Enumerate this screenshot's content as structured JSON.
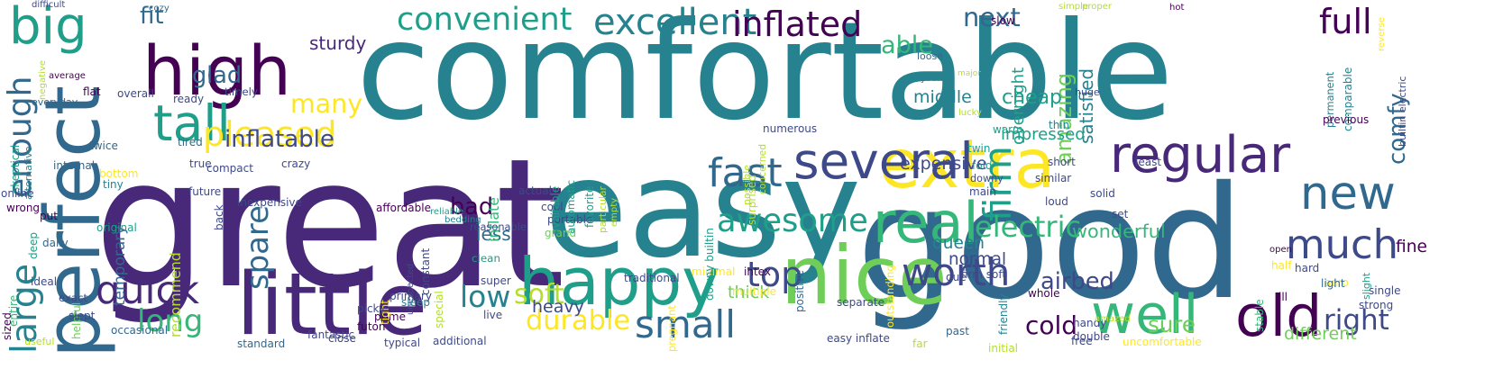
{
  "palette": {
    "c1": "#440154",
    "c2": "#482878",
    "c3": "#3e4989",
    "c4": "#31688e",
    "c5": "#26828e",
    "c6": "#1f9e89",
    "c7": "#35b779",
    "c8": "#6ece58",
    "c9": "#b5de2b",
    "c10": "#fde725"
  },
  "words": [
    {
      "text": "comfortable",
      "color": "c5"
    },
    {
      "text": "great",
      "color": "c2"
    },
    {
      "text": "easy",
      "color": "c5"
    },
    {
      "text": "good",
      "color": "c4"
    },
    {
      "text": "high",
      "color": "c1"
    },
    {
      "text": "little",
      "color": "c2"
    },
    {
      "text": "perfect",
      "color": "c4"
    },
    {
      "text": "nice",
      "color": "c8"
    },
    {
      "text": "happy",
      "color": "c6"
    },
    {
      "text": "extra",
      "color": "c10"
    },
    {
      "text": "regular",
      "color": "c2"
    },
    {
      "text": "several",
      "color": "c3"
    },
    {
      "text": "big",
      "color": "c6"
    },
    {
      "text": "tall",
      "color": "c6"
    },
    {
      "text": "real",
      "color": "c7"
    },
    {
      "text": "well",
      "color": "c7"
    },
    {
      "text": "much",
      "color": "c3"
    },
    {
      "text": "new",
      "color": "c4"
    },
    {
      "text": "old",
      "color": "c1"
    },
    {
      "text": "quick",
      "color": "c2"
    },
    {
      "text": "large",
      "color": "c5"
    },
    {
      "text": "firm",
      "color": "c6"
    },
    {
      "text": "awesome",
      "color": "c6"
    },
    {
      "text": "excellent",
      "color": "c5"
    },
    {
      "text": "convenient",
      "color": "c6"
    },
    {
      "text": "inflated",
      "color": "c1"
    },
    {
      "text": "full",
      "color": "c1"
    },
    {
      "text": "enough",
      "color": "c4"
    },
    {
      "text": "fast",
      "color": "c4"
    },
    {
      "text": "many",
      "color": "c10"
    },
    {
      "text": "worth",
      "color": "c3"
    },
    {
      "text": "top",
      "color": "c3"
    },
    {
      "text": "small",
      "color": "c4"
    },
    {
      "text": "electric",
      "color": "c7"
    },
    {
      "text": "spare",
      "color": "c4"
    },
    {
      "text": "durable",
      "color": "c10"
    },
    {
      "text": "long",
      "color": "c7"
    },
    {
      "text": "low",
      "color": "c5"
    },
    {
      "text": "soft",
      "color": "c9"
    },
    {
      "text": "sure",
      "color": "c8"
    },
    {
      "text": "right",
      "color": "c3"
    },
    {
      "text": "cold",
      "color": "c1"
    },
    {
      "text": "pleased",
      "color": "c10"
    },
    {
      "text": "next",
      "color": "c4"
    },
    {
      "text": "able",
      "color": "c7"
    },
    {
      "text": "fit",
      "color": "c4"
    },
    {
      "text": "glad",
      "color": "c4"
    },
    {
      "text": "inflatable",
      "color": "c3"
    },
    {
      "text": "bad",
      "color": "c1"
    },
    {
      "text": "airbed",
      "color": "c3"
    },
    {
      "text": "wonderful",
      "color": "c7"
    },
    {
      "text": "amazing",
      "color": "c8"
    },
    {
      "text": "comfy",
      "color": "c4"
    },
    {
      "text": "cheap",
      "color": "c6"
    },
    {
      "text": "sturdy",
      "color": "c2"
    },
    {
      "text": "satisfied",
      "color": "c5"
    },
    {
      "text": "overnight",
      "color": "c6"
    },
    {
      "text": "middle",
      "color": "c5"
    },
    {
      "text": "expensive",
      "color": "c3"
    },
    {
      "text": "impressed",
      "color": "c6"
    },
    {
      "text": "less",
      "color": "c4"
    },
    {
      "text": "inflate",
      "color": "c7"
    },
    {
      "text": "queen",
      "color": "c5"
    },
    {
      "text": "normal",
      "color": "c3"
    },
    {
      "text": "heavy",
      "color": "c3"
    },
    {
      "text": "thick",
      "color": "c8"
    },
    {
      "text": "temporary",
      "color": "c4"
    },
    {
      "text": "recommend",
      "color": "c9"
    },
    {
      "text": "fine",
      "color": "c1"
    },
    {
      "text": "different",
      "color": "c8"
    },
    {
      "text": "difficult",
      "color": "c3"
    },
    {
      "text": "cozy",
      "color": "c4"
    },
    {
      "text": "slow",
      "color": "c1"
    },
    {
      "text": "simple",
      "color": "c9"
    },
    {
      "text": "proper",
      "color": "c9"
    },
    {
      "text": "hot",
      "color": "c1"
    },
    {
      "text": "loose",
      "color": "c4"
    },
    {
      "text": "huge",
      "color": "c3"
    },
    {
      "text": "lucky",
      "color": "c9"
    },
    {
      "text": "young",
      "color": "c5"
    },
    {
      "text": "major",
      "color": "c9"
    },
    {
      "text": "negative",
      "color": "c9"
    },
    {
      "text": "average",
      "color": "c1"
    },
    {
      "text": "flat",
      "color": "c1"
    },
    {
      "text": "overall",
      "color": "c3"
    },
    {
      "text": "everyday",
      "color": "c4"
    },
    {
      "text": "timely",
      "color": "c3"
    },
    {
      "text": "ready",
      "color": "c3"
    },
    {
      "text": "tired",
      "color": "c4"
    },
    {
      "text": "twice",
      "color": "c4"
    },
    {
      "text": "true",
      "color": "c3"
    },
    {
      "text": "compact",
      "color": "c3"
    },
    {
      "text": "crazy",
      "color": "c3"
    },
    {
      "text": "warm",
      "color": "c6"
    },
    {
      "text": "twin",
      "color": "c6"
    },
    {
      "text": "fold",
      "color": "c6"
    },
    {
      "text": "downy",
      "color": "c3"
    },
    {
      "text": "thin",
      "color": "c5"
    },
    {
      "text": "main",
      "color": "c3"
    },
    {
      "text": "loud",
      "color": "c3"
    },
    {
      "text": "solid",
      "color": "c3"
    },
    {
      "text": "set",
      "color": "c3"
    },
    {
      "text": "least",
      "color": "c3"
    },
    {
      "text": "short",
      "color": "c3"
    },
    {
      "text": "similar",
      "color": "c3"
    },
    {
      "text": "permanent",
      "color": "c5"
    },
    {
      "text": "comparable",
      "color": "c5"
    },
    {
      "text": "reverse",
      "color": "c10"
    },
    {
      "text": "previous",
      "color": "c1"
    },
    {
      "text": "builtin electric",
      "color": "c3"
    },
    {
      "text": "skeptical",
      "color": "c6"
    },
    {
      "text": "alternative",
      "color": "c5"
    },
    {
      "text": "internal",
      "color": "c4"
    },
    {
      "text": "bottom",
      "color": "c10"
    },
    {
      "text": "tiny",
      "color": "c5"
    },
    {
      "text": "online",
      "color": "c3"
    },
    {
      "text": "wrong",
      "color": "c1"
    },
    {
      "text": "put",
      "color": "c1"
    },
    {
      "text": "original",
      "color": "c6"
    },
    {
      "text": "future",
      "color": "c3"
    },
    {
      "text": "back",
      "color": "c3"
    },
    {
      "text": "inexpensive",
      "color": "c3"
    },
    {
      "text": "affordable",
      "color": "c1"
    },
    {
      "text": "reliable",
      "color": "c6"
    },
    {
      "text": "bedding",
      "color": "c5"
    },
    {
      "text": "reasonable",
      "color": "c3"
    },
    {
      "text": "actual",
      "color": "c3"
    },
    {
      "text": "cool",
      "color": "c3"
    },
    {
      "text": "portable",
      "color": "c3"
    },
    {
      "text": "grand",
      "color": "c8"
    },
    {
      "text": "available",
      "color": "c6"
    },
    {
      "text": "automatic",
      "color": "c6"
    },
    {
      "text": "favorite",
      "color": "c6"
    },
    {
      "text": "particular",
      "color": "c9"
    },
    {
      "text": "empty",
      "color": "c9"
    },
    {
      "text": "open",
      "color": "c1"
    },
    {
      "text": "half",
      "color": "c10"
    },
    {
      "text": "hard",
      "color": "c3"
    },
    {
      "text": "slight",
      "color": "c6"
    },
    {
      "text": "deep",
      "color": "c6"
    },
    {
      "text": "daily",
      "color": "c4"
    },
    {
      "text": "entire",
      "color": "c7"
    },
    {
      "text": "ideal",
      "color": "c3"
    },
    {
      "text": "exact",
      "color": "c3"
    },
    {
      "text": "helpful",
      "color": "c8"
    },
    {
      "text": "sized",
      "color": "c1"
    },
    {
      "text": "slept",
      "color": "c3"
    },
    {
      "text": "useful",
      "color": "c9"
    },
    {
      "text": "occasional",
      "color": "c4"
    },
    {
      "text": "standard",
      "color": "c4"
    },
    {
      "text": "fantastic",
      "color": "c3"
    },
    {
      "text": "close",
      "color": "c3"
    },
    {
      "text": "additional",
      "color": "c3"
    },
    {
      "text": "easy inflate",
      "color": "c3"
    },
    {
      "text": "far",
      "color": "c9"
    },
    {
      "text": "past",
      "color": "c4"
    },
    {
      "text": "initial",
      "color": "c9"
    },
    {
      "text": "free",
      "color": "c3"
    },
    {
      "text": "uncomfortable",
      "color": "c10"
    },
    {
      "text": "unexpected",
      "color": "c3"
    },
    {
      "text": "constant",
      "color": "c3"
    },
    {
      "text": "clean",
      "color": "c6"
    },
    {
      "text": "super",
      "color": "c3"
    },
    {
      "text": "traditional",
      "color": "c3"
    },
    {
      "text": "primary",
      "color": "c3"
    },
    {
      "text": "prime",
      "color": "c1"
    },
    {
      "text": "special",
      "color": "c9"
    },
    {
      "text": "typical",
      "color": "c3"
    },
    {
      "text": "tight",
      "color": "c10"
    },
    {
      "text": "sleep",
      "color": "c5"
    },
    {
      "text": "picky",
      "color": "c3"
    },
    {
      "text": "futon",
      "color": "c1"
    },
    {
      "text": "live",
      "color": "c3"
    },
    {
      "text": "pregnant",
      "color": "c10"
    },
    {
      "text": "minimal",
      "color": "c10"
    },
    {
      "text": "multiple",
      "color": "c10"
    },
    {
      "text": "downy builtin",
      "color": "c6"
    },
    {
      "text": "intex",
      "color": "c1"
    },
    {
      "text": "positive",
      "color": "c4"
    },
    {
      "text": "due",
      "color": "c3"
    },
    {
      "text": "firm soft",
      "color": "c3"
    },
    {
      "text": "friendly",
      "color": "c5"
    },
    {
      "text": "separate",
      "color": "c3"
    },
    {
      "text": "outstanding",
      "color": "c10"
    },
    {
      "text": "whole",
      "color": "c1"
    },
    {
      "text": "stable",
      "color": "c7"
    },
    {
      "text": "aero",
      "color": "c10"
    },
    {
      "text": "single",
      "color": "c3"
    },
    {
      "text": "ill",
      "color": "c1"
    },
    {
      "text": "light",
      "color": "c4"
    },
    {
      "text": "strong",
      "color": "c3"
    },
    {
      "text": "handy",
      "color": "c3"
    },
    {
      "text": "double",
      "color": "c3"
    },
    {
      "text": "amazed",
      "color": "c9"
    },
    {
      "text": "numerous",
      "color": "c3"
    },
    {
      "text": "concerned",
      "color": "c9"
    },
    {
      "text": "possible",
      "color": "c9"
    },
    {
      "text": "surprised",
      "color": "c9"
    }
  ]
}
